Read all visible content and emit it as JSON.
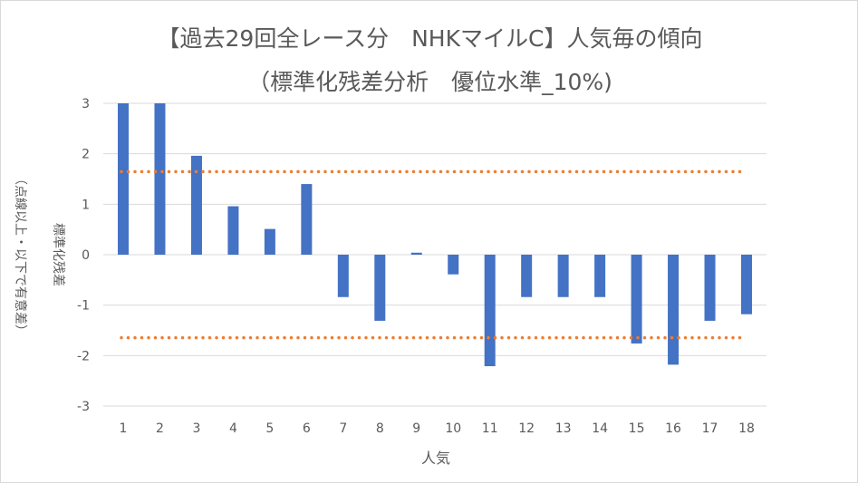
{
  "chart_data": {
    "type": "bar",
    "title_line1": "【過去29回全レース分　NHKマイルC】人気毎の傾向",
    "title_line2": "（標準化残差分析　優位水準_10%)",
    "xlabel": "人気",
    "ylabel_line1": "標準化残差",
    "ylabel_line2": "（点線以上・以下で有意差）",
    "categories": [
      "1",
      "2",
      "3",
      "4",
      "5",
      "6",
      "7",
      "8",
      "9",
      "10",
      "11",
      "12",
      "13",
      "14",
      "15",
      "16",
      "17",
      "18"
    ],
    "values": [
      3.0,
      3.0,
      1.96,
      0.96,
      0.51,
      1.4,
      -0.84,
      -1.31,
      0.04,
      -0.39,
      -2.21,
      -0.84,
      -0.84,
      -0.84,
      -1.76,
      -2.18,
      -1.31,
      -1.18
    ],
    "ylim": [
      -3,
      3
    ],
    "yticks": [
      3,
      2,
      1,
      0,
      -1,
      -2,
      -3
    ],
    "threshold_upper": 1.645,
    "threshold_lower": -1.645,
    "grid": true,
    "bar_color": "#4472c4",
    "threshold_color": "#ed7d31",
    "grid_color": "#d9d9d9",
    "text_color": "#595959"
  }
}
